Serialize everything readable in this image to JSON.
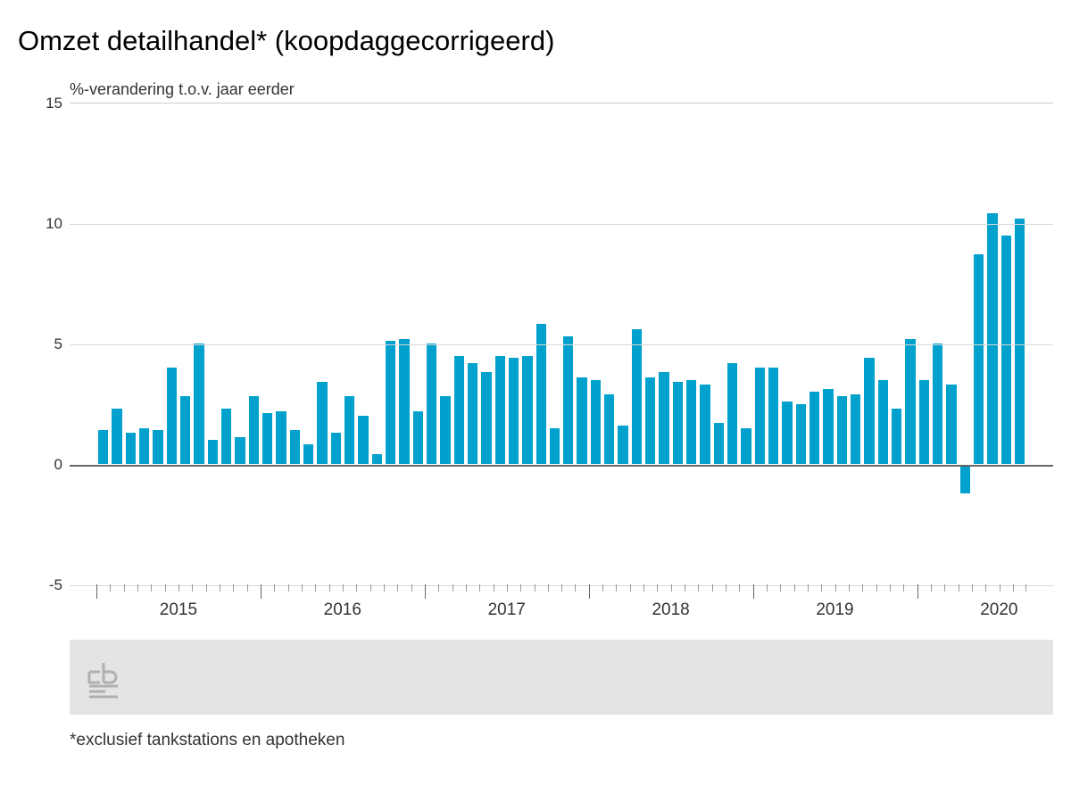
{
  "title": "Omzet detailhandel* (koopdaggecorrigeerd)",
  "subtitle": "%-verandering t.o.v. jaar eerder",
  "footnote": "*exclusief tankstations en apotheken",
  "chart": {
    "type": "bar",
    "ylim": [
      -5,
      15
    ],
    "yticks": [
      -5,
      0,
      5,
      10,
      15
    ],
    "bar_color": "#00a1cd",
    "grid_color": "#d9d9d9",
    "zero_line_color": "#666666",
    "background_color": "#ffffff",
    "footer_band_color": "#e4e4e4",
    "logo_stroke": "#b0b0b0",
    "title_fontsize": 31,
    "subtitle_fontsize": 18,
    "axis_fontsize": 17,
    "xlabel_fontsize": 19,
    "footnote_fontsize": 19,
    "x_major_labels": [
      "2015",
      "2016",
      "2017",
      "2018",
      "2019",
      "2020"
    ],
    "months_per_year": 12,
    "values": [
      1.4,
      2.3,
      1.3,
      1.5,
      1.4,
      4.0,
      2.8,
      5.0,
      1.0,
      2.3,
      1.1,
      2.8,
      2.1,
      2.2,
      1.4,
      0.8,
      3.4,
      1.3,
      2.8,
      2.0,
      0.4,
      5.1,
      5.2,
      2.2,
      5.0,
      2.8,
      4.5,
      4.2,
      3.8,
      4.5,
      4.4,
      4.5,
      5.8,
      1.5,
      5.3,
      3.6,
      3.5,
      2.9,
      1.6,
      5.6,
      3.6,
      3.8,
      3.4,
      3.5,
      3.3,
      1.7,
      4.2,
      1.5,
      4.0,
      4.0,
      2.6,
      2.5,
      3.0,
      3.1,
      2.8,
      2.9,
      4.4,
      3.5,
      2.3,
      5.2,
      3.5,
      5.0,
      3.3,
      -1.2,
      8.7,
      10.4,
      9.5,
      10.2
    ]
  }
}
